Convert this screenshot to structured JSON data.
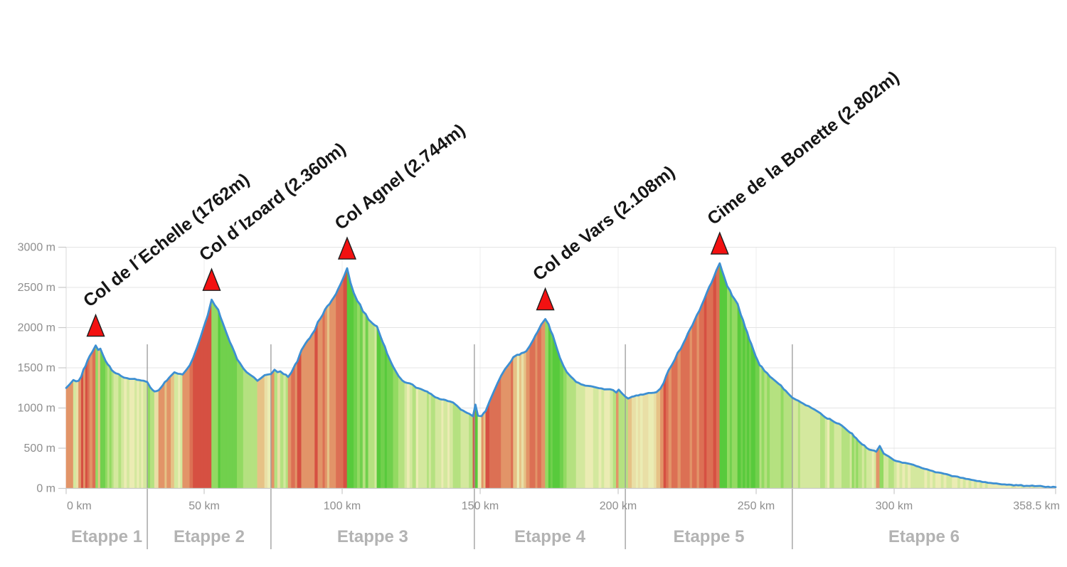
{
  "chart_data": {
    "type": "area",
    "title": "",
    "x_axis": {
      "unit": "km",
      "range": [
        0,
        358.5
      ],
      "ticks": [
        {
          "km": 0,
          "label": "0 km"
        },
        {
          "km": 50,
          "label": "50 km"
        },
        {
          "km": 100,
          "label": "100 km"
        },
        {
          "km": 150,
          "label": "150 km"
        },
        {
          "km": 200,
          "label": "200 km"
        },
        {
          "km": 250,
          "label": "250 km"
        },
        {
          "km": 300,
          "label": "300 km"
        },
        {
          "km": 358.5,
          "label": "358.5 km"
        }
      ]
    },
    "y_axis": {
      "unit": "m",
      "range": [
        0,
        3000
      ],
      "ticks": [
        {
          "m": 0,
          "label": "0 m"
        },
        {
          "m": 500,
          "label": "500 m"
        },
        {
          "m": 1000,
          "label": "1000 m"
        },
        {
          "m": 1500,
          "label": "1500 m"
        },
        {
          "m": 2000,
          "label": "2000 m"
        },
        {
          "m": 2500,
          "label": "2500 m"
        },
        {
          "m": 3000,
          "label": "3000 m"
        }
      ]
    },
    "grid": true,
    "legend": null,
    "peaks": [
      {
        "name": "col-de-l-echelle",
        "label": "Col de l´Echelle (1762m)",
        "km": 10.7,
        "sign_elevation_m": 1762,
        "profile_m": 1778
      },
      {
        "name": "col-d-izoard",
        "label": "Col d´Izoard (2.360m)",
        "km": 52.7,
        "sign_elevation_m": 2360,
        "profile_m": 2348
      },
      {
        "name": "col-agnel",
        "label": "Col Agnel (2.744m)",
        "km": 101.8,
        "sign_elevation_m": 2744,
        "profile_m": 2738
      },
      {
        "name": "col-de-vars",
        "label": "Col de Vars (2.108m)",
        "km": 173.6,
        "sign_elevation_m": 2108,
        "profile_m": 2106
      },
      {
        "name": "cime-de-la-bonette",
        "label": "Cime de la Bonette (2.802m)",
        "km": 236.8,
        "sign_elevation_m": 2802,
        "profile_m": 2800
      }
    ],
    "stages": [
      {
        "label": "Etappe 1",
        "start_km": 0,
        "end_km": 29.4
      },
      {
        "label": "Etappe 2",
        "start_km": 29.4,
        "end_km": 74.2
      },
      {
        "label": "Etappe 3",
        "start_km": 74.2,
        "end_km": 147.9
      },
      {
        "label": "Etappe 4",
        "start_km": 147.9,
        "end_km": 202.6
      },
      {
        "label": "Etappe 5",
        "start_km": 202.6,
        "end_km": 263.1
      },
      {
        "label": "Etappe 6",
        "start_km": 263.1,
        "end_km": 358.5
      }
    ],
    "profile_points": [
      [
        0,
        1250
      ],
      [
        1.2,
        1292
      ],
      [
        2.6,
        1348
      ],
      [
        3.6,
        1332
      ],
      [
        4.5,
        1338
      ],
      [
        5.5,
        1392
      ],
      [
        7,
        1520
      ],
      [
        8.5,
        1645
      ],
      [
        9.6,
        1705
      ],
      [
        10.7,
        1778
      ],
      [
        11.6,
        1722
      ],
      [
        12.4,
        1738
      ],
      [
        13.5,
        1645
      ],
      [
        15,
        1545
      ],
      [
        16.5,
        1472
      ],
      [
        18,
        1432
      ],
      [
        20,
        1396
      ],
      [
        22,
        1372
      ],
      [
        24,
        1362
      ],
      [
        26.5,
        1348
      ],
      [
        28,
        1340
      ],
      [
        29.4,
        1322
      ],
      [
        30.5,
        1256
      ],
      [
        32,
        1206
      ],
      [
        33.5,
        1220
      ],
      [
        35,
        1282
      ],
      [
        36.5,
        1342
      ],
      [
        38,
        1402
      ],
      [
        39.2,
        1444
      ],
      [
        40.6,
        1426
      ],
      [
        42.2,
        1417
      ],
      [
        43.5,
        1472
      ],
      [
        44.8,
        1532
      ],
      [
        46,
        1622
      ],
      [
        47.4,
        1752
      ],
      [
        48.7,
        1882
      ],
      [
        50,
        2022
      ],
      [
        51.3,
        2152
      ],
      [
        52.7,
        2348
      ],
      [
        53.8,
        2282
      ],
      [
        55.1,
        2222
      ],
      [
        56.7,
        2062
      ],
      [
        58,
        1942
      ],
      [
        59.3,
        1822
      ],
      [
        61,
        1692
      ],
      [
        62.9,
        1562
      ],
      [
        64.2,
        1492
      ],
      [
        65.4,
        1444
      ],
      [
        66.7,
        1412
      ],
      [
        68,
        1382
      ],
      [
        69.3,
        1338
      ],
      [
        70.6,
        1372
      ],
      [
        71.9,
        1408
      ],
      [
        73,
        1416
      ],
      [
        74.2,
        1422
      ],
      [
        75.5,
        1476
      ],
      [
        76.6,
        1446
      ],
      [
        77.6,
        1456
      ],
      [
        78.8,
        1422
      ],
      [
        80.4,
        1386
      ],
      [
        81.6,
        1442
      ],
      [
        83,
        1542
      ],
      [
        84.5,
        1652
      ],
      [
        86,
        1762
      ],
      [
        87.5,
        1842
      ],
      [
        89,
        1912
      ],
      [
        91.2,
        2072
      ],
      [
        93,
        2162
      ],
      [
        94.6,
        2266
      ],
      [
        96.3,
        2342
      ],
      [
        97.8,
        2422
      ],
      [
        99.3,
        2532
      ],
      [
        100.5,
        2622
      ],
      [
        101.8,
        2738
      ],
      [
        103,
        2562
      ],
      [
        104.2,
        2432
      ],
      [
        105.5,
        2332
      ],
      [
        107.5,
        2202
      ],
      [
        109.5,
        2102
      ],
      [
        111,
        2052
      ],
      [
        112.6,
        2016
      ],
      [
        114,
        1882
      ],
      [
        115.5,
        1762
      ],
      [
        117,
        1622
      ],
      [
        118.5,
        1512
      ],
      [
        120.4,
        1398
      ],
      [
        121.8,
        1342
      ],
      [
        123.5,
        1312
      ],
      [
        125.5,
        1292
      ],
      [
        126.8,
        1252
      ],
      [
        128.5,
        1236
      ],
      [
        130,
        1212
      ],
      [
        131.5,
        1186
      ],
      [
        133,
        1152
      ],
      [
        134.5,
        1126
      ],
      [
        136,
        1106
      ],
      [
        137.5,
        1098
      ],
      [
        139,
        1082
      ],
      [
        140.2,
        1068
      ],
      [
        141.5,
        1032
      ],
      [
        143,
        980
      ],
      [
        144.5,
        953
      ],
      [
        146,
        929
      ],
      [
        147.4,
        897
      ],
      [
        148.3,
        1042
      ],
      [
        149.2,
        904
      ],
      [
        150.5,
        898
      ],
      [
        152,
        962
      ],
      [
        153.4,
        1082
      ],
      [
        154.8,
        1192
      ],
      [
        156.2,
        1302
      ],
      [
        157.6,
        1402
      ],
      [
        159,
        1482
      ],
      [
        160.4,
        1546
      ],
      [
        162,
        1632
      ],
      [
        163.4,
        1662
      ],
      [
        165,
        1682
      ],
      [
        166.7,
        1706
      ],
      [
        168,
        1772
      ],
      [
        169.3,
        1852
      ],
      [
        170.8,
        1946
      ],
      [
        172.2,
        2042
      ],
      [
        173.6,
        2106
      ],
      [
        174.8,
        2042
      ],
      [
        176.3,
        1906
      ],
      [
        177.6,
        1762
      ],
      [
        178.9,
        1626
      ],
      [
        180.2,
        1522
      ],
      [
        181.4,
        1446
      ],
      [
        182.8,
        1392
      ],
      [
        184.8,
        1324
      ],
      [
        186.5,
        1296
      ],
      [
        188.1,
        1278
      ],
      [
        190,
        1272
      ],
      [
        192,
        1256
      ],
      [
        194,
        1243
      ],
      [
        196,
        1233
      ],
      [
        198.2,
        1222
      ],
      [
        199.3,
        1192
      ],
      [
        200.2,
        1228
      ],
      [
        201.4,
        1182
      ],
      [
        202.6,
        1142
      ],
      [
        203.6,
        1118
      ],
      [
        205,
        1141
      ],
      [
        206.5,
        1156
      ],
      [
        208,
        1166
      ],
      [
        210,
        1177
      ],
      [
        212,
        1187
      ],
      [
        213.9,
        1197
      ],
      [
        215.3,
        1242
      ],
      [
        216.5,
        1312
      ],
      [
        218.3,
        1472
      ],
      [
        220.5,
        1602
      ],
      [
        222.7,
        1737
      ],
      [
        224.5,
        1864
      ],
      [
        226,
        1977
      ],
      [
        227.7,
        2094
      ],
      [
        229.4,
        2208
      ],
      [
        231.2,
        2354
      ],
      [
        233,
        2507
      ],
      [
        234.5,
        2614
      ],
      [
        235.6,
        2712
      ],
      [
        236.8,
        2800
      ],
      [
        238.5,
        2622
      ],
      [
        240.5,
        2464
      ],
      [
        242,
        2364
      ],
      [
        243.3,
        2294
      ],
      [
        244.5,
        2154
      ],
      [
        246,
        2004
      ],
      [
        247.5,
        1854
      ],
      [
        249,
        1724
      ],
      [
        250.5,
        1594
      ],
      [
        252,
        1514
      ],
      [
        254,
        1434
      ],
      [
        256,
        1364
      ],
      [
        258,
        1304
      ],
      [
        260,
        1234
      ],
      [
        261.5,
        1184
      ],
      [
        263.1,
        1128
      ],
      [
        264.5,
        1102
      ],
      [
        266,
        1074
      ],
      [
        268,
        1034
      ],
      [
        270,
        1002
      ],
      [
        272.4,
        954
      ],
      [
        275,
        884
      ],
      [
        277.5,
        844
      ],
      [
        280,
        804
      ],
      [
        282,
        754
      ],
      [
        284,
        694
      ],
      [
        285.5,
        644
      ],
      [
        287,
        592
      ],
      [
        288.4,
        547
      ],
      [
        290,
        504
      ],
      [
        292,
        474
      ],
      [
        293.5,
        457
      ],
      [
        294.8,
        527
      ],
      [
        296.2,
        434
      ],
      [
        298,
        398
      ],
      [
        300,
        350
      ],
      [
        302,
        332
      ],
      [
        304,
        318
      ],
      [
        306,
        302
      ],
      [
        308,
        278
      ],
      [
        310,
        254
      ],
      [
        312,
        236
      ],
      [
        314,
        216
      ],
      [
        316,
        198
      ],
      [
        318,
        182
      ],
      [
        320,
        166
      ],
      [
        322,
        150
      ],
      [
        324,
        133
      ],
      [
        326,
        119
      ],
      [
        328,
        106
      ],
      [
        330,
        92
      ],
      [
        332,
        80
      ],
      [
        334,
        70
      ],
      [
        336,
        62
      ],
      [
        338,
        56
      ],
      [
        340,
        50
      ],
      [
        342.5,
        44
      ],
      [
        345,
        38
      ],
      [
        348,
        32
      ],
      [
        351,
        27
      ],
      [
        354,
        23
      ],
      [
        358.5,
        16
      ]
    ],
    "slope_color_scale": [
      {
        "min_pct": 8.5,
        "color": "#d65042"
      },
      {
        "min_pct": 6,
        "color": "#dc7054"
      },
      {
        "min_pct": 3.5,
        "color": "#e29468"
      },
      {
        "min_pct": 1.5,
        "color": "#e6c286"
      },
      {
        "min_pct": 0.5,
        "color": "#e9dfa6"
      },
      {
        "min_pct": -0.8,
        "color": "#ebecb3"
      },
      {
        "min_pct": -2.2,
        "color": "#d4e89e"
      },
      {
        "min_pct": -4.2,
        "color": "#b5e180"
      },
      {
        "min_pct": -6.8,
        "color": "#93da62"
      },
      {
        "min_pct": -9.5,
        "color": "#71d04d"
      },
      {
        "min_pct": -999,
        "color": "#58ca3c"
      }
    ],
    "line": {
      "color": "#3d8fd2",
      "width": 2.8
    },
    "marker": {
      "shape": "triangle",
      "fill": "#f31111",
      "stroke": "#1e1e1e"
    },
    "style": {
      "background": "#ffffff",
      "grid_horizontal": "#e4e4e4",
      "grid_vertical": "#ececec",
      "plot_border": "#d9d9d9",
      "axis": "#c9c9c9",
      "stage_divider": "#9a9a9a",
      "tick_label_color": "#8e8e8e",
      "stage_label_color": "#b3b3b3",
      "peak_label_color": "#161616"
    }
  }
}
